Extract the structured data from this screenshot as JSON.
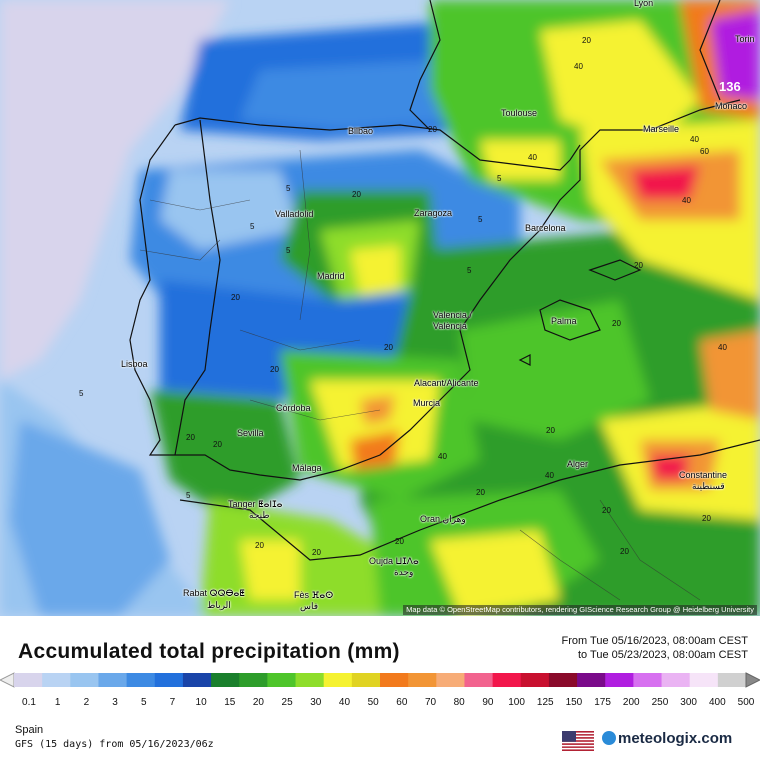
{
  "map": {
    "attribution": "Map data © OpenStreetMap contributors, rendering GIScience Research Group @ Heidelberg University",
    "cities": [
      {
        "name": "Lyon",
        "id": "lyon"
      },
      {
        "name": "Torin",
        "id": "torino"
      },
      {
        "name": "Monaco",
        "id": "monaco"
      },
      {
        "name": "Toulouse",
        "id": "toulouse"
      },
      {
        "name": "Marseille",
        "id": "marseille"
      },
      {
        "name": "Bilbao",
        "id": "bilbao"
      },
      {
        "name": "Valladolid",
        "id": "valladolid"
      },
      {
        "name": "Zaragoza",
        "id": "zaragoza"
      },
      {
        "name": "Barcelona",
        "id": "barcelona"
      },
      {
        "name": "Madrid",
        "id": "madrid"
      },
      {
        "name": "Valencia /",
        "id": "valencia1"
      },
      {
        "name": "València",
        "id": "valencia2"
      },
      {
        "name": "Palma",
        "id": "palma"
      },
      {
        "name": "Lisboa",
        "id": "lisboa"
      },
      {
        "name": "Alacant/Alicante",
        "id": "alicante"
      },
      {
        "name": "Córdoba",
        "id": "cordoba"
      },
      {
        "name": "Murcia",
        "id": "murcia"
      },
      {
        "name": "Sevilla",
        "id": "sevilla"
      },
      {
        "name": "Málaga",
        "id": "malaga"
      },
      {
        "name": "Alger",
        "id": "alger"
      },
      {
        "name": "Constantine",
        "id": "constantine"
      },
      {
        "name": "قسنطينة",
        "id": "constantine_ar"
      },
      {
        "name": "Tanger ⵟⴰⵏⵊⴰ",
        "id": "tanger"
      },
      {
        "name": "طنجة",
        "id": "tanger_ar"
      },
      {
        "name": "Oran وهران",
        "id": "oran"
      },
      {
        "name": "Oujda ⵡⵊⴷⴰ",
        "id": "oujda"
      },
      {
        "name": "وجدة",
        "id": "oujda_ar"
      },
      {
        "name": "Rabat ⵕⵕⴱⴰⵟ",
        "id": "rabat"
      },
      {
        "name": "الرباط",
        "id": "rabat_ar"
      },
      {
        "name": "Fès ⴼⴰⵙ",
        "id": "fes"
      },
      {
        "name": "فاس",
        "id": "fes_ar"
      }
    ],
    "max_value_label": "136",
    "contour_labels": [
      "20",
      "40",
      "40",
      "20",
      "40",
      "60",
      "40",
      "5",
      "5",
      "5",
      "5",
      "20",
      "20",
      "20",
      "20",
      "40",
      "5",
      "20",
      "20",
      "20",
      "5",
      "40",
      "20",
      "20",
      "20",
      "20",
      "20",
      "20",
      "40",
      "20",
      "20",
      "5",
      "5",
      "20"
    ]
  },
  "legend": {
    "title": "Accumulated total precipitation (mm)",
    "range_from": "From Tue 05/16/2023, 08:00am CEST",
    "range_to": "to Tue 05/23/2023, 08:00am CEST",
    "levels": [
      "0.1",
      "1",
      "2",
      "3",
      "5",
      "7",
      "10",
      "15",
      "20",
      "25",
      "30",
      "40",
      "50",
      "60",
      "70",
      "80",
      "90",
      "100",
      "125",
      "150",
      "175",
      "200",
      "250",
      "300",
      "400",
      "500"
    ],
    "colors": [
      "#d8d4ec",
      "#b9d3f3",
      "#99c5f0",
      "#6aa8ea",
      "#3d8ae3",
      "#2270dc",
      "#1a44a8",
      "#1a7f2c",
      "#2e9d2a",
      "#4ec52a",
      "#8edd2a",
      "#f5f231",
      "#e0d322",
      "#f27a1c",
      "#f29535",
      "#f7ac77",
      "#f2638e",
      "#f2164b",
      "#c8102f",
      "#8a0a2a",
      "#7a0a8a",
      "#b01ee0",
      "#d770f0",
      "#eab3f3",
      "#f6e4f8",
      "#d0d0d0"
    ]
  },
  "footer": {
    "region": "Spain",
    "model": "GFS (15 days) from  05/16/2023/06z",
    "brand": "meteologix.com"
  }
}
